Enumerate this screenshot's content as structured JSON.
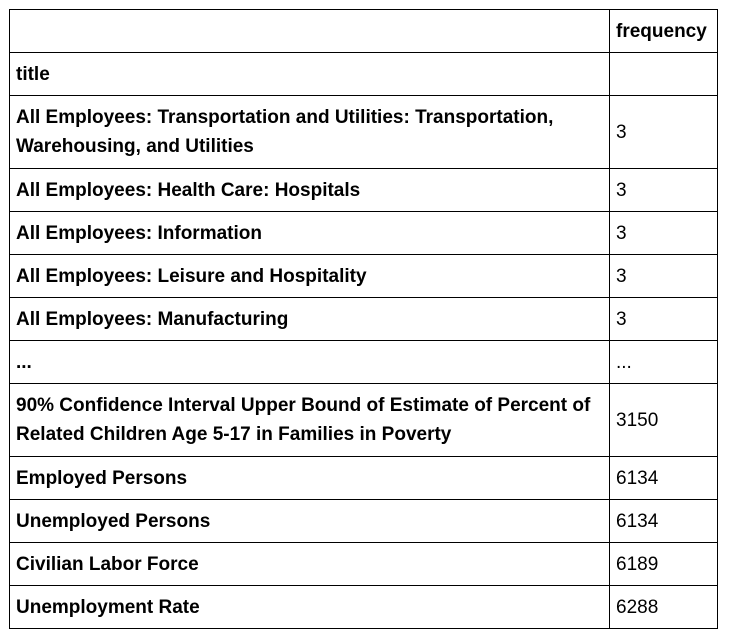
{
  "table": {
    "header_label": "frequency",
    "index_label": "title",
    "rows": [
      {
        "title": "All Employees: Transportation and Utilities: Transportation, Warehousing, and Utilities",
        "frequency": "3"
      },
      {
        "title": "All Employees: Health Care: Hospitals",
        "frequency": "3"
      },
      {
        "title": "All Employees: Information",
        "frequency": "3"
      },
      {
        "title": "All Employees: Leisure and Hospitality",
        "frequency": "3"
      },
      {
        "title": "All Employees: Manufacturing",
        "frequency": "3"
      },
      {
        "title": "...",
        "frequency": "..."
      },
      {
        "title": "90% Confidence Interval Upper Bound of Estimate of Percent of Related Children Age 5-17 in Families in Poverty",
        "frequency": "3150"
      },
      {
        "title": "Employed Persons",
        "frequency": "6134"
      },
      {
        "title": "Unemployed Persons",
        "frequency": "6134"
      },
      {
        "title": "Civilian Labor Force",
        "frequency": "6189"
      },
      {
        "title": "Unemployment Rate",
        "frequency": "6288"
      }
    ]
  }
}
